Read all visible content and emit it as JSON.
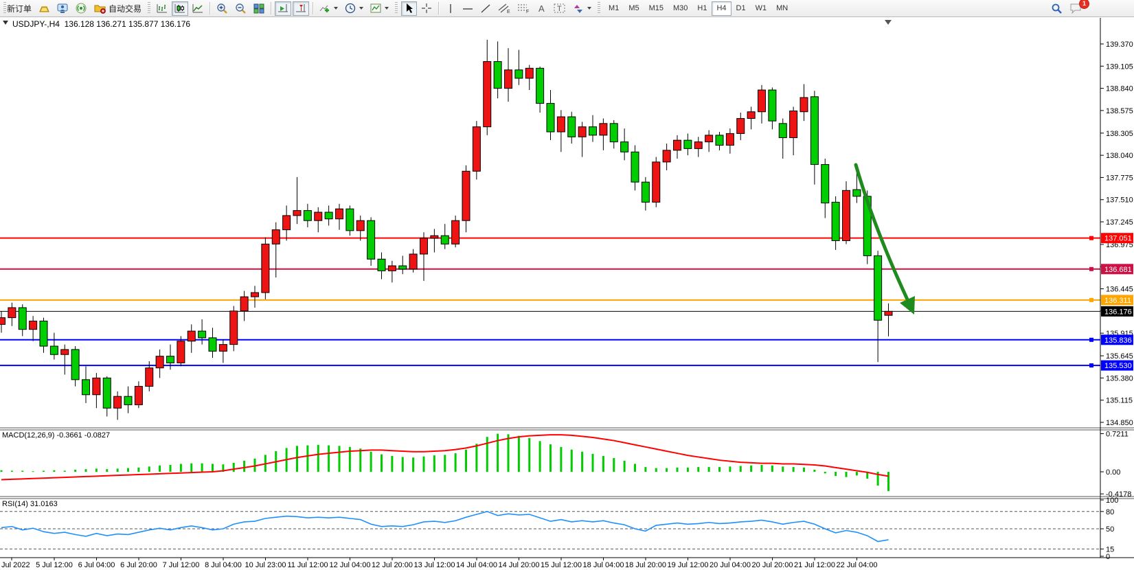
{
  "toolbar": {
    "new_order_label": "新订单",
    "autotrading_label": "自动交易",
    "timeframes": [
      "M1",
      "M5",
      "M15",
      "M30",
      "H1",
      "H4",
      "D1",
      "W1",
      "MN"
    ],
    "active_timeframe": "H4",
    "notification_badge": "1",
    "icon_names": [
      "gold-ingot-icon",
      "remote-terminal-icon",
      "signal-icon",
      "autotrading-icon",
      "bar-chart-icon",
      "candlestick-chart-icon",
      "line-chart-icon",
      "zoom-in-icon",
      "zoom-out-icon",
      "tile-windows-icon",
      "auto-scroll-icon",
      "chart-shift-icon",
      "indicators-icon",
      "periods-icon",
      "templates-icon",
      "cursor-icon",
      "crosshair-icon",
      "vertical-line-icon",
      "horizontal-line-icon",
      "trendline-icon",
      "channel-icon",
      "fibonacci-icon",
      "text-icon",
      "text-label-icon",
      "arrows-icon",
      "search-icon",
      "chat-icon"
    ]
  },
  "chart": {
    "title": "USDJPY-,H4",
    "ohlc_text": "136.128 136.271 135.877 136.176",
    "macd_label": "MACD(12,26,9) -0.3661 -0.0827",
    "rsi_label": "RSI(14) 31.0163",
    "colors": {
      "bull": "#ee1414",
      "bear": "#00ce00",
      "wick": "#000000",
      "macd_hist": "#00cc00",
      "macd_signal": "#ff0000",
      "rsi_line": "#1e8fff",
      "arrow": "#1f8b1f",
      "axis_text": "#000000"
    }
  },
  "price_axis": {
    "ticks": [
      "139.370",
      "139.105",
      "138.840",
      "138.575",
      "138.305",
      "138.040",
      "137.775",
      "137.510",
      "137.245",
      "136.975",
      "136.710",
      "136.445",
      "136.180",
      "135.915",
      "135.645",
      "135.380",
      "135.115",
      "134.850"
    ]
  },
  "hlines": [
    {
      "price": 137.051,
      "label": "137.051",
      "color": "#ff0202",
      "width": 2,
      "handle": true
    },
    {
      "price": 136.681,
      "label": "136.681",
      "color": "#cc1144",
      "width": 2,
      "handle": true
    },
    {
      "price": 136.311,
      "label": "136.311",
      "color": "#ffa500",
      "width": 2,
      "handle": true
    },
    {
      "price": 136.176,
      "label": "136.176",
      "color": "#000000",
      "width": 1,
      "handle": false,
      "bid": true
    },
    {
      "price": 135.836,
      "label": "135.836",
      "color": "#0000ff",
      "width": 2,
      "handle": true
    },
    {
      "price": 135.53,
      "label": "135.530",
      "color": "#0000ff",
      "width": 2,
      "handle": true
    }
  ],
  "chart_data": {
    "type": "candlestick",
    "symbol": "USDJPY-",
    "period": "H4",
    "y_range": [
      134.85,
      139.37
    ],
    "bars": [
      [
        136.02,
        136.18,
        135.92,
        136.1
      ],
      [
        136.1,
        136.28,
        136.0,
        136.22
      ],
      [
        136.22,
        136.26,
        135.88,
        135.96
      ],
      [
        135.96,
        136.12,
        135.82,
        136.06
      ],
      [
        136.06,
        136.1,
        135.68,
        135.76
      ],
      [
        135.76,
        135.92,
        135.6,
        135.66
      ],
      [
        135.66,
        135.78,
        135.42,
        135.72
      ],
      [
        135.72,
        135.76,
        135.28,
        135.36
      ],
      [
        135.36,
        135.52,
        135.08,
        135.18
      ],
      [
        135.18,
        135.44,
        135.02,
        135.38
      ],
      [
        135.38,
        135.4,
        134.92,
        135.02
      ],
      [
        135.02,
        135.22,
        134.88,
        135.16
      ],
      [
        135.16,
        135.28,
        134.96,
        135.06
      ],
      [
        135.06,
        135.34,
        135.02,
        135.28
      ],
      [
        135.28,
        135.58,
        135.22,
        135.5
      ],
      [
        135.5,
        135.72,
        135.38,
        135.64
      ],
      [
        135.64,
        135.78,
        135.48,
        135.56
      ],
      [
        135.56,
        135.88,
        135.52,
        135.82
      ],
      [
        135.82,
        136.02,
        135.68,
        135.94
      ],
      [
        135.94,
        136.08,
        135.78,
        135.86
      ],
      [
        135.86,
        135.98,
        135.62,
        135.7
      ],
      [
        135.7,
        135.84,
        135.56,
        135.78
      ],
      [
        135.78,
        136.24,
        135.7,
        136.18
      ],
      [
        136.18,
        136.42,
        136.06,
        136.35
      ],
      [
        136.35,
        136.48,
        136.22,
        136.4
      ],
      [
        136.4,
        137.06,
        136.32,
        136.98
      ],
      [
        136.98,
        137.24,
        136.58,
        137.15
      ],
      [
        137.15,
        137.44,
        137.02,
        137.32
      ],
      [
        137.32,
        137.78,
        137.22,
        137.38
      ],
      [
        137.38,
        137.46,
        137.18,
        137.26
      ],
      [
        137.26,
        137.42,
        137.12,
        137.36
      ],
      [
        137.36,
        137.44,
        137.2,
        137.28
      ],
      [
        137.28,
        137.46,
        137.15,
        137.4
      ],
      [
        137.4,
        137.44,
        137.08,
        137.14
      ],
      [
        137.14,
        137.32,
        137.02,
        137.26
      ],
      [
        137.26,
        137.3,
        136.72,
        136.8
      ],
      [
        136.8,
        136.88,
        136.56,
        136.66
      ],
      [
        136.66,
        136.78,
        136.52,
        136.72
      ],
      [
        136.72,
        136.84,
        136.62,
        136.68
      ],
      [
        136.68,
        136.92,
        136.64,
        136.86
      ],
      [
        136.86,
        137.12,
        136.54,
        137.05
      ],
      [
        137.05,
        137.16,
        136.88,
        137.08
      ],
      [
        137.08,
        137.22,
        136.92,
        136.98
      ],
      [
        136.98,
        137.32,
        136.94,
        137.26
      ],
      [
        137.26,
        137.92,
        137.12,
        137.85
      ],
      [
        137.85,
        138.45,
        137.75,
        138.38
      ],
      [
        138.38,
        139.42,
        138.28,
        139.16
      ],
      [
        139.16,
        139.4,
        138.72,
        138.84
      ],
      [
        138.84,
        139.32,
        138.68,
        139.06
      ],
      [
        139.06,
        139.3,
        138.88,
        138.96
      ],
      [
        138.96,
        139.12,
        138.82,
        139.08
      ],
      [
        139.08,
        139.1,
        138.55,
        138.66
      ],
      [
        138.66,
        138.82,
        138.22,
        138.32
      ],
      [
        138.32,
        138.58,
        138.08,
        138.5
      ],
      [
        138.5,
        138.56,
        138.18,
        138.26
      ],
      [
        138.26,
        138.44,
        138.02,
        138.38
      ],
      [
        138.38,
        138.52,
        138.2,
        138.28
      ],
      [
        138.28,
        138.48,
        138.1,
        138.42
      ],
      [
        138.42,
        138.46,
        138.12,
        138.2
      ],
      [
        138.2,
        138.36,
        137.98,
        138.08
      ],
      [
        138.08,
        138.16,
        137.62,
        137.72
      ],
      [
        137.72,
        137.78,
        137.38,
        137.48
      ],
      [
        137.48,
        138.02,
        137.42,
        137.96
      ],
      [
        137.96,
        138.18,
        137.86,
        138.1
      ],
      [
        138.1,
        138.28,
        138.0,
        138.22
      ],
      [
        138.22,
        138.3,
        138.04,
        138.12
      ],
      [
        138.12,
        138.26,
        138.02,
        138.2
      ],
      [
        138.2,
        138.34,
        138.08,
        138.28
      ],
      [
        138.28,
        138.32,
        138.1,
        138.16
      ],
      [
        138.16,
        138.36,
        138.06,
        138.3
      ],
      [
        138.3,
        138.55,
        138.22,
        138.48
      ],
      [
        138.48,
        138.62,
        138.35,
        138.56
      ],
      [
        138.56,
        138.88,
        138.42,
        138.82
      ],
      [
        138.82,
        138.85,
        138.35,
        138.45
      ],
      [
        138.42,
        138.48,
        138.0,
        138.25
      ],
      [
        138.25,
        138.62,
        138.04,
        138.57
      ],
      [
        138.56,
        138.89,
        138.45,
        138.73
      ],
      [
        138.74,
        138.81,
        137.69,
        137.93
      ],
      [
        137.93,
        138.0,
        137.29,
        137.47
      ],
      [
        137.48,
        137.55,
        136.91,
        137.02
      ],
      [
        137.02,
        137.73,
        136.98,
        137.62
      ],
      [
        137.63,
        137.84,
        137.47,
        137.55
      ],
      [
        137.55,
        137.62,
        136.74,
        136.84
      ],
      [
        136.84,
        136.9,
        135.57,
        136.07
      ],
      [
        136.128,
        136.271,
        135.877,
        136.176
      ]
    ],
    "macd": {
      "histogram": [
        0.03,
        0.02,
        0.02,
        0.01,
        0.02,
        0.03,
        0.02,
        0.04,
        0.05,
        0.06,
        0.05,
        0.06,
        0.07,
        0.08,
        0.1,
        0.12,
        0.13,
        0.15,
        0.16,
        0.16,
        0.15,
        0.14,
        0.17,
        0.21,
        0.25,
        0.32,
        0.39,
        0.45,
        0.49,
        0.5,
        0.51,
        0.5,
        0.49,
        0.47,
        0.44,
        0.38,
        0.33,
        0.3,
        0.28,
        0.27,
        0.29,
        0.31,
        0.32,
        0.35,
        0.42,
        0.53,
        0.66,
        0.72,
        0.71,
        0.68,
        0.64,
        0.58,
        0.52,
        0.47,
        0.42,
        0.38,
        0.34,
        0.3,
        0.26,
        0.21,
        0.15,
        0.09,
        0.07,
        0.07,
        0.08,
        0.08,
        0.09,
        0.09,
        0.09,
        0.1,
        0.11,
        0.12,
        0.13,
        0.12,
        0.1,
        0.09,
        0.08,
        0.04,
        -0.03,
        -0.08,
        -0.1,
        -0.07,
        -0.13,
        -0.26,
        -0.3661
      ],
      "signal": [
        -0.15,
        -0.142,
        -0.135,
        -0.127,
        -0.12,
        -0.112,
        -0.105,
        -0.097,
        -0.09,
        -0.082,
        -0.075,
        -0.067,
        -0.06,
        -0.052,
        -0.045,
        -0.037,
        -0.03,
        -0.022,
        -0.015,
        -0.007,
        0.0,
        0.02,
        0.05,
        0.08,
        0.11,
        0.15,
        0.19,
        0.23,
        0.27,
        0.3,
        0.33,
        0.35,
        0.37,
        0.39,
        0.4,
        0.41,
        0.41,
        0.4,
        0.39,
        0.38,
        0.38,
        0.39,
        0.4,
        0.42,
        0.45,
        0.49,
        0.54,
        0.59,
        0.63,
        0.66,
        0.68,
        0.69,
        0.7,
        0.7,
        0.69,
        0.67,
        0.65,
        0.62,
        0.59,
        0.55,
        0.51,
        0.47,
        0.43,
        0.39,
        0.35,
        0.31,
        0.28,
        0.25,
        0.22,
        0.2,
        0.18,
        0.17,
        0.16,
        0.16,
        0.15,
        0.15,
        0.14,
        0.13,
        0.11,
        0.08,
        0.05,
        0.02,
        -0.01,
        -0.05,
        -0.0827
      ],
      "axis_labels": [
        "0.7211",
        "0.00",
        "-0.4178"
      ],
      "axis_values": [
        0.7211,
        0,
        -0.4178
      ]
    },
    "rsi": {
      "values": [
        52,
        54,
        48,
        51,
        45,
        42,
        44,
        40,
        37,
        42,
        38,
        41,
        40,
        44,
        48,
        51,
        48,
        52,
        55,
        52,
        48,
        50,
        58,
        62,
        63,
        68,
        70,
        72,
        71,
        69,
        70,
        69,
        70,
        68,
        66,
        58,
        54,
        55,
        54,
        57,
        62,
        63,
        61,
        64,
        70,
        75,
        80,
        73,
        76,
        74,
        75,
        69,
        63,
        66,
        62,
        64,
        62,
        64,
        60,
        57,
        50,
        46,
        56,
        58,
        60,
        58,
        59,
        61,
        59,
        60,
        62,
        63,
        65,
        62,
        58,
        61,
        63,
        58,
        50,
        43,
        47,
        44,
        38,
        28,
        31.0163
      ],
      "levels": [
        80,
        50,
        15
      ],
      "axis_labels": [
        "100",
        "80",
        "50",
        "15",
        "0"
      ],
      "axis_values": [
        100,
        80,
        50,
        15,
        0
      ]
    },
    "time_labels": [
      "Jul 2022",
      "5 Jul 12:00",
      "6 Jul 04:00",
      "6 Jul 20:00",
      "7 Jul 12:00",
      "8 Jul 04:00",
      "10 Jul 23:00",
      "11 Jul 12:00",
      "12 Jul 04:00",
      "12 Jul 20:00",
      "13 Jul 12:00",
      "14 Jul 04:00",
      "14 Jul 20:00",
      "15 Jul 12:00",
      "18 Jul 04:00",
      "18 Jul 20:00",
      "19 Jul 12:00",
      "20 Jul 04:00",
      "20 Jul 20:00",
      "21 Jul 12:00",
      "22 Jul 04:00"
    ]
  }
}
